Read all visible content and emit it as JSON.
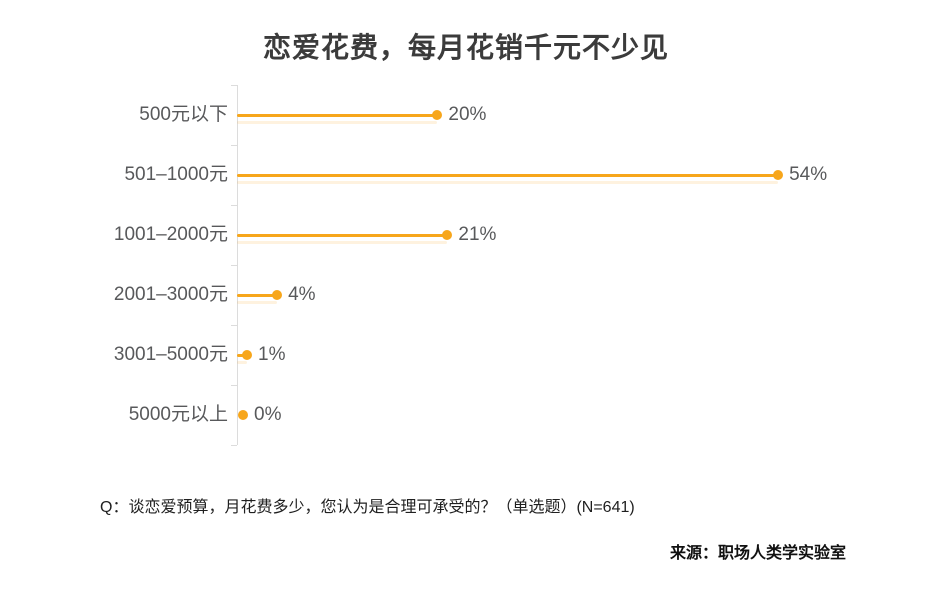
{
  "title": "恋爱花费，每月花销千元不少见",
  "footnote": "Q：谈恋爱预算，月花费多少，您认为是合理可承受的？（单选题）(N=641)",
  "source": "来源：职场人类学实验室",
  "colors": {
    "accent": "#F7A61B",
    "label_gray": "#58595B",
    "title_gray": "#3B3B3B",
    "axis_gray": "#DCDCDC"
  },
  "chart_data": {
    "type": "bar",
    "subtype": "lollipop",
    "orientation": "horizontal",
    "title": "恋爱花费，每月花销千元不少见",
    "categories": [
      "500元以下",
      "501–1000元",
      "1001–2000元",
      "2001–3000元",
      "3001–5000元",
      "5000元以上"
    ],
    "values": [
      20,
      54,
      21,
      4,
      1,
      0
    ],
    "value_labels": [
      "20%",
      "54%",
      "21%",
      "4%",
      "1%",
      "0%"
    ],
    "unit": "%",
    "xlabel": "",
    "ylabel": "",
    "xlim": [
      0,
      60
    ],
    "grid": false,
    "legend": "none",
    "sample_note": "N=641",
    "question_type": "单选题"
  }
}
